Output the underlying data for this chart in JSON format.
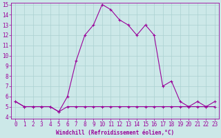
{
  "xlabel": "Windchill (Refroidissement éolien,°C)",
  "hours": [
    0,
    1,
    2,
    3,
    4,
    5,
    6,
    7,
    8,
    9,
    10,
    11,
    12,
    13,
    14,
    15,
    16,
    17,
    18,
    19,
    20,
    21,
    22,
    23
  ],
  "temp": [
    5.5,
    5.0,
    5.0,
    5.0,
    5.0,
    4.5,
    6.0,
    9.5,
    12.0,
    13.0,
    15.0,
    14.5,
    13.5,
    13.0,
    12.0,
    13.0,
    12.0,
    7.0,
    7.5,
    5.5,
    5.0,
    5.5,
    5.0,
    5.5
  ],
  "windchill": [
    5.5,
    5.0,
    5.0,
    5.0,
    5.0,
    4.5,
    5.0,
    5.0,
    5.0,
    5.0,
    5.0,
    5.0,
    5.0,
    5.0,
    5.0,
    5.0,
    5.0,
    5.0,
    5.0,
    5.0,
    5.0,
    5.0,
    5.0,
    5.0
  ],
  "line_color": "#990099",
  "bg_color": "#cce8e8",
  "grid_color": "#aad0d0",
  "ylim_min": 3.8,
  "ylim_max": 15.2,
  "yticks": [
    4,
    5,
    6,
    7,
    8,
    9,
    10,
    11,
    12,
    13,
    14,
    15
  ],
  "xlabel_fontsize": 5.5,
  "tick_fontsize": 5.5
}
